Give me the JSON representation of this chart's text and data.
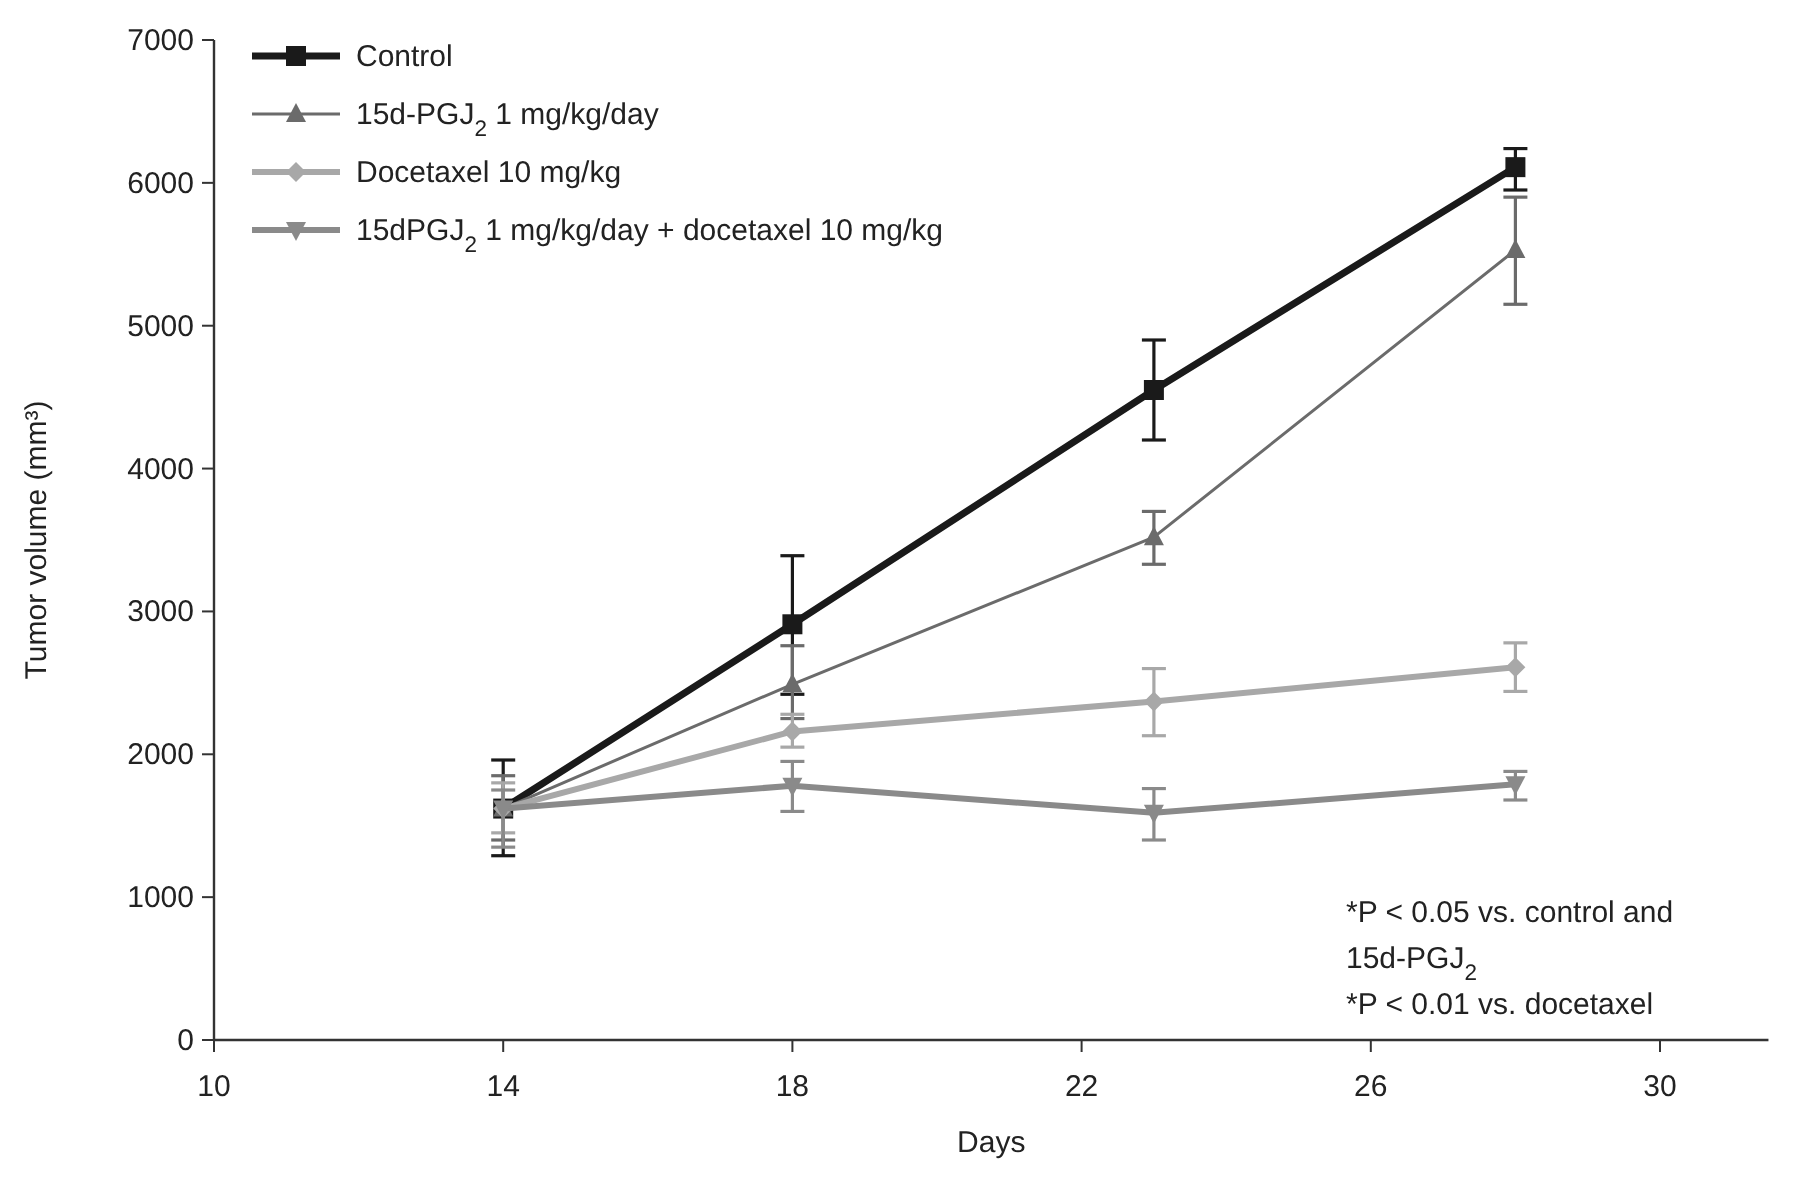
{
  "chart_data": {
    "type": "line",
    "xlabel": "Days",
    "ylabel": "Tumor volume (mm³)",
    "x": [
      14,
      18,
      23,
      28
    ],
    "xlim": [
      10,
      31.5
    ],
    "xticks": [
      10,
      14,
      18,
      22,
      26,
      30
    ],
    "ylim": [
      0,
      7000
    ],
    "yticks": [
      0,
      1000,
      2000,
      3000,
      4000,
      5000,
      6000,
      7000
    ],
    "grid": false,
    "legend": "top left",
    "series": [
      {
        "name": "Control",
        "color": "#1a1a1a",
        "marker": "square",
        "values": [
          1620,
          2910,
          4550,
          6110
        ],
        "errors": [
          [
            1290,
            1960
          ],
          [
            2420,
            3390
          ],
          [
            4200,
            4900
          ],
          [
            5950,
            6240
          ]
        ]
      },
      {
        "name": "15d-PGJ$_{2}$ 1 mg/kg/day",
        "color": "#6b6b6b",
        "marker": "triangle",
        "values": [
          1620,
          2490,
          3520,
          5530
        ],
        "errors": [
          [
            1400,
            1850
          ],
          [
            2250,
            2760
          ],
          [
            3330,
            3700
          ],
          [
            5150,
            5900
          ]
        ]
      },
      {
        "name": "Docetaxel 10 mg/kg",
        "color": "#a8a8a8",
        "marker": "diamond",
        "values": [
          1620,
          2160,
          2370,
          2610
        ],
        "errors": [
          [
            1450,
            1800
          ],
          [
            2050,
            2280
          ],
          [
            2130,
            2600
          ],
          [
            2440,
            2780
          ]
        ]
      },
      {
        "name": "15dPGJ$_{2}$ 1 mg/kg/day + docetaxel 10 mg/kg",
        "color": "#8a8a8a",
        "marker": "triangle-down",
        "values": [
          1620,
          1780,
          1590,
          1790
        ],
        "errors": [
          [
            1350,
            1750
          ],
          [
            1600,
            1950
          ],
          [
            1400,
            1760
          ],
          [
            1680,
            1880
          ]
        ]
      }
    ],
    "annotations": [
      "*P < 0.05 vs. control and 15d-PGJ$_{2}$",
      "*P < 0.01 vs. docetaxel"
    ]
  }
}
